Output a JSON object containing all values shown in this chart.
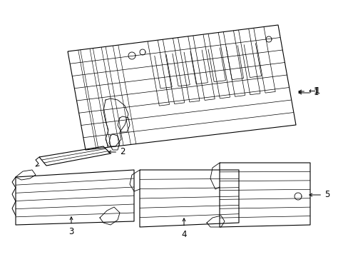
{
  "background_color": "#ffffff",
  "line_color": "#000000",
  "lw": 0.8,
  "fig_width": 4.89,
  "fig_height": 3.6,
  "dpi": 100
}
